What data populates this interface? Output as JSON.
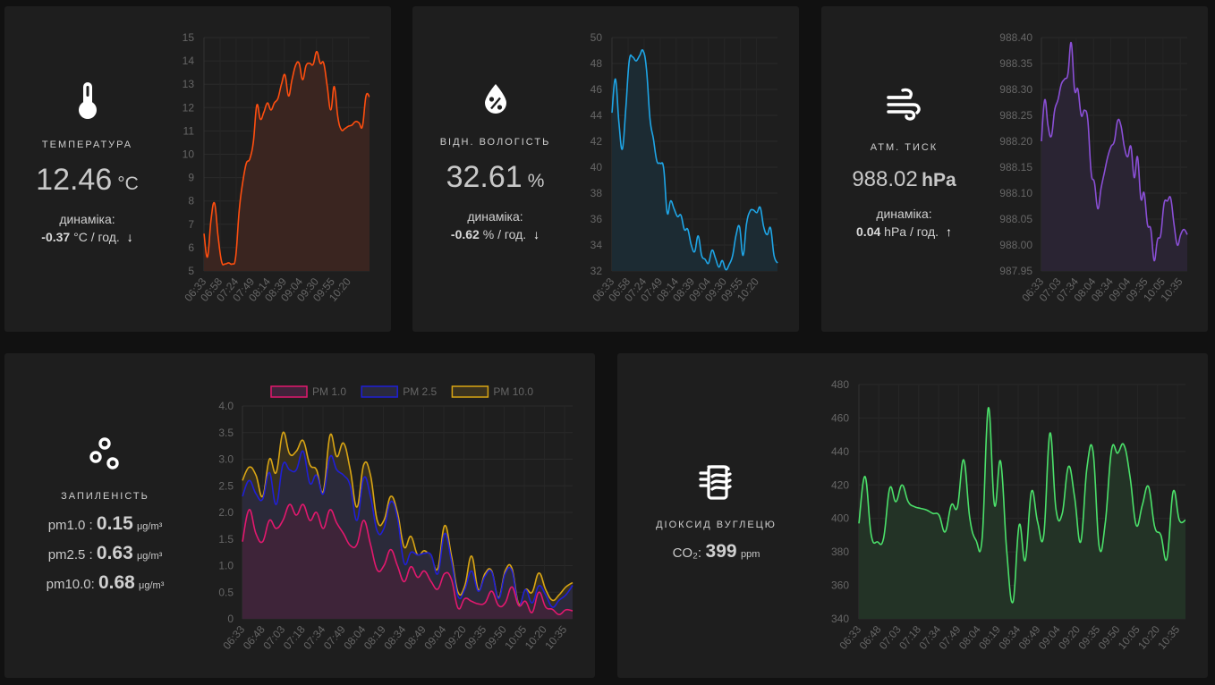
{
  "cards": {
    "temperature": {
      "icon": "thermometer-icon",
      "label": "ТЕМПЕРАТУРА",
      "value": "12.46",
      "unit": "°C",
      "dyn_label": "динаміка:",
      "dyn_value": "-0.37",
      "dyn_unit": "°C / год.",
      "trend_icon": "arrow-down-icon",
      "trend_glyph": "↓"
    },
    "humidity": {
      "icon": "water-percent-icon",
      "label": "ВІДН. ВОЛОГІСТЬ",
      "value": "32.61",
      "unit": "%",
      "dyn_label": "динаміка:",
      "dyn_value": "-0.62",
      "dyn_unit": "% / год.",
      "trend_icon": "arrow-down-icon",
      "trend_glyph": "↓"
    },
    "pressure": {
      "icon": "weather-windy-icon",
      "label": "АТМ. ТИСК",
      "value": "988.02",
      "unit": "hPa",
      "dyn_label": "динаміка:",
      "dyn_value": "0.04",
      "dyn_unit": "hPa / год.",
      "trend_icon": "arrow-up-icon",
      "trend_glyph": "↑"
    },
    "dust": {
      "icon": "dots-circles-icon",
      "label": "ЗАПИЛЕНІСТЬ",
      "rows": [
        {
          "label": "pm1.0 :",
          "value": "0.15",
          "unit": "μg/m³"
        },
        {
          "label": "pm2.5 :",
          "value": "0.63",
          "unit": "μg/m³"
        },
        {
          "label": "pm10.0:",
          "value": "0.68",
          "unit": "μg/m³"
        }
      ]
    },
    "co2": {
      "icon": "molecule-co2-icon",
      "label": "ДІОКСИД ВУГЛЕЦЮ",
      "prefix": "CO₂:",
      "value": "399",
      "unit": "ppm"
    }
  },
  "chart_data": [
    {
      "id": "temperature",
      "type": "area",
      "title": "",
      "xlabel": "",
      "ylabel": "",
      "color": "#ff4e0f",
      "fill": "#3a2520",
      "ylim": [
        5,
        15
      ],
      "yticks": [
        "5",
        "6",
        "7",
        "8",
        "9",
        "10",
        "11",
        "12",
        "13",
        "14",
        "15"
      ],
      "xticks": [
        "06:33",
        "06:58",
        "07:24",
        "07:49",
        "08:14",
        "08:39",
        "09:04",
        "09:30",
        "09:55",
        "10:20"
      ],
      "grid": true,
      "series": [
        {
          "name": "Температура",
          "values": [
            6.6,
            5.6,
            7.2,
            7.9,
            6.5,
            5.4,
            5.3,
            5.35,
            5.3,
            5.6,
            7.6,
            8.8,
            9.6,
            9.8,
            10.5,
            12.1,
            11.5,
            11.8,
            12.2,
            11.9,
            12.2,
            12.4,
            13.0,
            13.4,
            12.5,
            13.2,
            13.8,
            13.9,
            13.2,
            13.8,
            13.9,
            13.85,
            14.4,
            13.9,
            13.9,
            12.9,
            11.9,
            12.9,
            11.6,
            11.05,
            11.1,
            11.2,
            11.25,
            11.4,
            11.35,
            11.2,
            12.5,
            12.46
          ]
        }
      ]
    },
    {
      "id": "humidity",
      "type": "area",
      "color": "#1ea5e6",
      "fill": "#1c2b33",
      "ylim": [
        32,
        50
      ],
      "yticks": [
        "32",
        "34",
        "36",
        "38",
        "40",
        "42",
        "44",
        "46",
        "48",
        "50"
      ],
      "xticks": [
        "06:33",
        "06:58",
        "07:24",
        "07:49",
        "08:14",
        "08:39",
        "09:04",
        "09:30",
        "09:55",
        "10:20"
      ],
      "grid": true,
      "series": [
        {
          "name": "Вологість",
          "values": [
            44.2,
            46.8,
            43.5,
            41.4,
            44.5,
            48.2,
            48.5,
            48.2,
            48.6,
            49.0,
            47.6,
            43.8,
            42.2,
            40.5,
            40.3,
            39.9,
            36.5,
            37.4,
            36.8,
            36.2,
            36.3,
            35.2,
            35.2,
            34.0,
            33.5,
            34.7,
            33.2,
            32.9,
            32.6,
            33.6,
            33.0,
            32.3,
            32.8,
            32.1,
            32.5,
            33.2,
            34.8,
            35.4,
            33.2,
            35.6,
            36.6,
            36.7,
            36.5,
            36.9,
            35.4,
            34.8,
            35.3,
            33.2,
            32.61
          ]
        }
      ]
    },
    {
      "id": "pressure",
      "type": "area",
      "color": "#8a4fd6",
      "fill": "#2a2433",
      "ylim": [
        987.95,
        988.4
      ],
      "yticks": [
        "987.95",
        "988.00",
        "988.05",
        "988.10",
        "988.15",
        "988.20",
        "988.25",
        "988.30",
        "988.35",
        "988.40"
      ],
      "xticks": [
        "06:33",
        "07:03",
        "07:34",
        "08:04",
        "08:34",
        "09:04",
        "09:35",
        "10:05",
        "10:35"
      ],
      "grid": true,
      "series": [
        {
          "name": "Тиск",
          "values": [
            988.2,
            988.28,
            988.23,
            988.21,
            988.26,
            988.28,
            988.31,
            988.32,
            988.33,
            988.39,
            988.3,
            988.3,
            988.25,
            988.26,
            988.24,
            988.14,
            988.12,
            988.07,
            988.11,
            988.14,
            988.17,
            988.19,
            988.2,
            988.24,
            988.23,
            988.19,
            988.17,
            988.19,
            988.13,
            988.17,
            988.09,
            988.1,
            988.04,
            988.03,
            987.97,
            988.01,
            988.02,
            988.08,
            988.085,
            988.09,
            988.04,
            988.0,
            988.02,
            988.03,
            988.02
          ]
        }
      ]
    },
    {
      "id": "dust",
      "type": "area",
      "ylim": [
        0,
        4.0
      ],
      "yticks": [
        "0",
        "0.5",
        "1.0",
        "1.5",
        "2.0",
        "2.5",
        "3.0",
        "3.5",
        "4.0"
      ],
      "xticks": [
        "06:33",
        "06:48",
        "07:03",
        "07:18",
        "07:34",
        "07:49",
        "08:04",
        "08:19",
        "08:34",
        "08:49",
        "09:04",
        "09:20",
        "09:35",
        "09:50",
        "10:05",
        "10:20",
        "10:35"
      ],
      "legend": "top-center",
      "grid": true,
      "series": [
        {
          "name": "PM 10.0",
          "color": "#d9a514",
          "fill": "#3a321f",
          "values": [
            2.6,
            2.85,
            2.7,
            2.3,
            3.0,
            2.75,
            3.5,
            3.1,
            3.15,
            3.35,
            2.9,
            2.8,
            2.4,
            3.45,
            3.05,
            3.3,
            2.8,
            2.1,
            2.9,
            2.7,
            1.85,
            1.85,
            2.3,
            2.0,
            1.35,
            1.55,
            1.2,
            1.28,
            1.15,
            0.95,
            1.75,
            1.2,
            0.5,
            0.62,
            1.18,
            0.55,
            0.85,
            0.9,
            0.4,
            0.9,
            0.95,
            0.28,
            0.55,
            0.5,
            0.86,
            0.55,
            0.35,
            0.45,
            0.6,
            0.68
          ]
        },
        {
          "name": "PM 2.5",
          "color": "#1f1fd6",
          "fill": "#2a2a3d",
          "values": [
            2.3,
            2.6,
            2.35,
            2.25,
            2.75,
            2.15,
            2.9,
            2.8,
            2.8,
            3.15,
            2.55,
            2.7,
            2.35,
            3.05,
            2.8,
            2.7,
            2.5,
            1.85,
            2.65,
            2.3,
            1.65,
            1.7,
            2.2,
            1.9,
            1.05,
            1.25,
            1.2,
            1.23,
            1.2,
            0.85,
            1.6,
            1.1,
            0.42,
            0.55,
            0.9,
            0.52,
            0.8,
            0.88,
            0.38,
            0.85,
            0.9,
            0.25,
            0.55,
            0.3,
            0.62,
            0.45,
            0.22,
            0.35,
            0.45,
            0.63
          ]
        },
        {
          "name": "PM 1.0",
          "color": "#e3186e",
          "fill": "#40233a",
          "values": [
            1.45,
            2.05,
            1.6,
            1.45,
            1.85,
            1.7,
            1.85,
            2.15,
            1.95,
            2.15,
            1.85,
            2.0,
            1.7,
            2.05,
            1.8,
            1.6,
            1.38,
            1.4,
            1.85,
            1.4,
            0.92,
            1.0,
            1.3,
            1.0,
            0.7,
            0.98,
            0.78,
            0.9,
            0.7,
            0.56,
            0.85,
            0.75,
            0.2,
            0.38,
            0.33,
            0.28,
            0.3,
            0.52,
            0.25,
            0.3,
            0.6,
            0.25,
            0.33,
            0.12,
            0.5,
            0.22,
            0.18,
            0.08,
            0.17,
            0.15
          ]
        }
      ]
    },
    {
      "id": "co2",
      "type": "area",
      "color": "#4be06a",
      "fill": "#233326",
      "ylim": [
        340,
        480
      ],
      "yticks": [
        "340",
        "360",
        "380",
        "400",
        "420",
        "440",
        "460",
        "480"
      ],
      "xticks": [
        "06:33",
        "06:48",
        "07:03",
        "07:18",
        "07:34",
        "07:49",
        "08:04",
        "08:19",
        "08:34",
        "08:49",
        "09:04",
        "09:20",
        "09:35",
        "09:50",
        "10:05",
        "10:20",
        "10:35"
      ],
      "grid": true,
      "series": [
        {
          "name": "CO2",
          "values": [
            397,
            425,
            390,
            386,
            388,
            418,
            410,
            420,
            410,
            407,
            406,
            405,
            403,
            402,
            392,
            408,
            407,
            435,
            400,
            387,
            388,
            466,
            408,
            434,
            380,
            350,
            396,
            375,
            416,
            398,
            390,
            451,
            405,
            403,
            431,
            413,
            386,
            430,
            440,
            383,
            398,
            441,
            439,
            444,
            425,
            396,
            408,
            419,
            395,
            390,
            376,
            416,
            399,
            399
          ]
        }
      ]
    }
  ]
}
